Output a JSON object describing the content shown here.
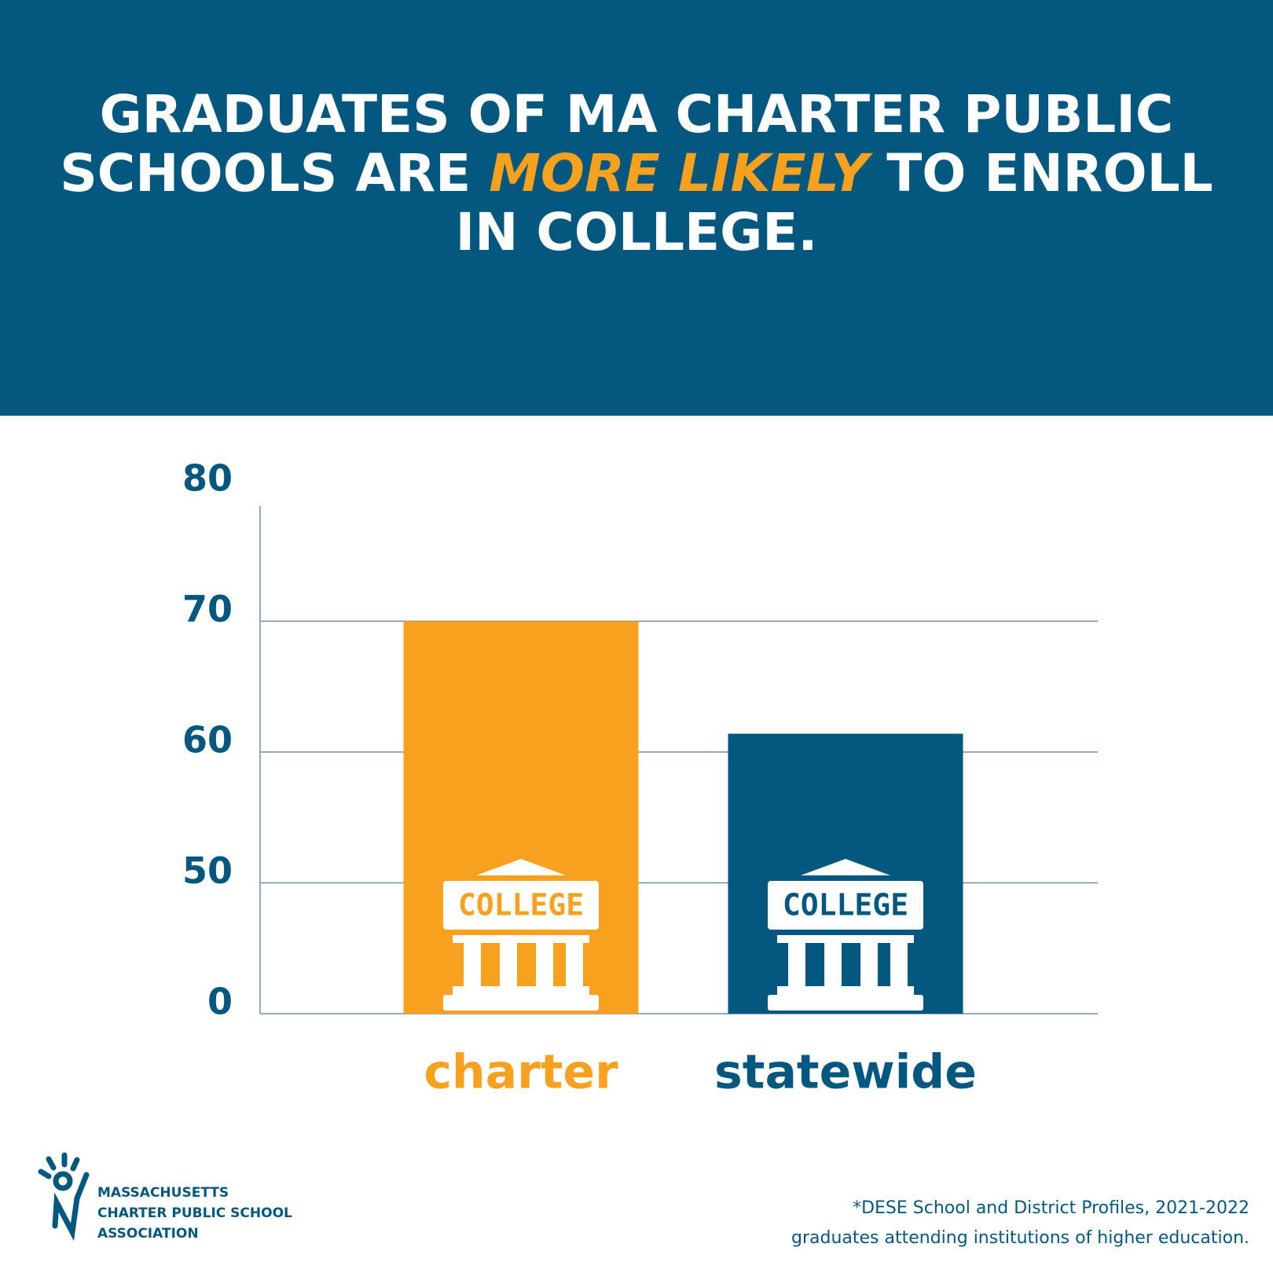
{
  "chart_data": {
    "type": "bar",
    "title": [
      "GRADUATES OF MA CHARTER PUBLIC SCHOOLS ARE ",
      "MORE LIKELY",
      " TO ENROLL IN COLLEGE."
    ],
    "categories": [
      "charter",
      "statewide"
    ],
    "values": [
      70,
      61.4
    ],
    "colors": [
      "#f7a11e",
      "#04587f"
    ],
    "icon_label": "COLLEGE",
    "ylim": [
      0,
      80
    ],
    "yticks": [
      0,
      50,
      60,
      70,
      80
    ],
    "grid": true,
    "footnote": [
      "*DESE School and District Profiles, 2021-2022",
      "graduates attending institutions of higher education."
    ]
  },
  "logo": {
    "lines": [
      "MASSACHUSETTS",
      "CHARTER PUBLIC SCHOOL",
      "ASSOCIATION"
    ]
  }
}
